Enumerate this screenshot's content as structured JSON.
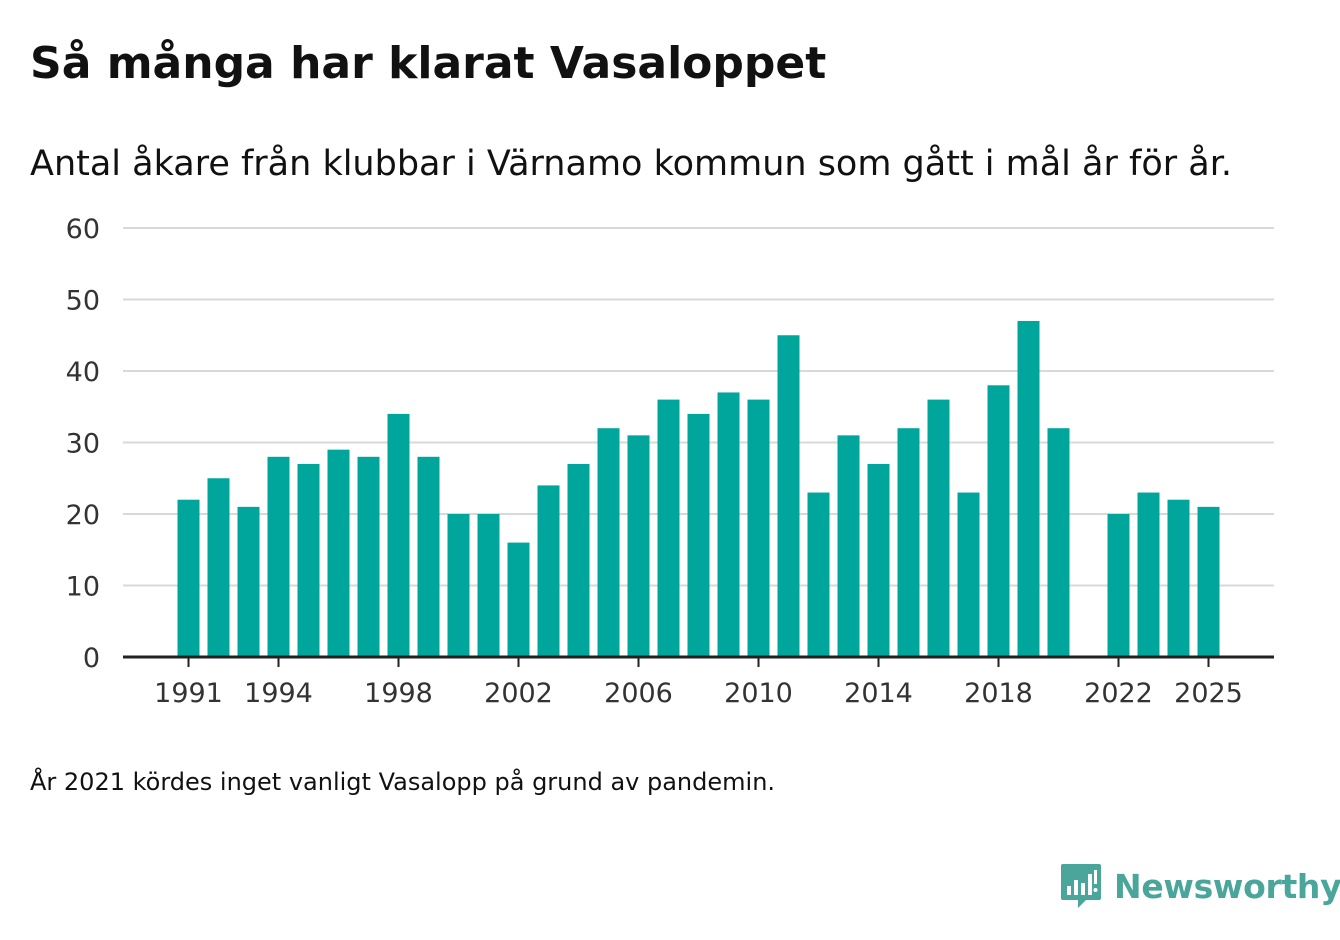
{
  "header": {
    "title": "Så många har klarat Vasaloppet",
    "subtitle": "Antal åkare från klubbar i Värnamo kommun som gått i mål år för år."
  },
  "footer": {
    "note": "År 2021 kördes inget vanligt Vasalopp på grund av pandemin.",
    "brand": "Newsworthy"
  },
  "colors": {
    "bar": "#00a69c",
    "grid": "#d9d9d9",
    "axis": "#222222",
    "brand": "#4aa59a"
  },
  "chart_data": {
    "type": "bar",
    "title": "Så många har klarat Vasaloppet",
    "subtitle": "Antal åkare från klubbar i Värnamo kommun som gått i mål år för år.",
    "xlabel": "",
    "ylabel": "",
    "ylim": [
      0,
      60
    ],
    "yticks": [
      0,
      10,
      20,
      30,
      40,
      50,
      60
    ],
    "xtick_labels": [
      "1991",
      "1994",
      "1998",
      "2002",
      "2006",
      "2010",
      "2014",
      "2018",
      "2022",
      "2025"
    ],
    "grid": true,
    "categories": [
      "1991",
      "1992",
      "1993",
      "1994",
      "1995",
      "1996",
      "1997",
      "1998",
      "1999",
      "2000",
      "2001",
      "2002",
      "2003",
      "2004",
      "2005",
      "2006",
      "2007",
      "2008",
      "2009",
      "2010",
      "2011",
      "2012",
      "2013",
      "2014",
      "2015",
      "2016",
      "2017",
      "2018",
      "2019",
      "2020",
      "2021",
      "2022",
      "2023",
      "2024",
      "2025"
    ],
    "values": [
      22,
      25,
      21,
      28,
      27,
      29,
      28,
      34,
      28,
      20,
      20,
      16,
      24,
      27,
      32,
      31,
      36,
      34,
      37,
      36,
      45,
      23,
      31,
      27,
      32,
      36,
      23,
      38,
      47,
      32,
      null,
      20,
      23,
      22,
      21
    ]
  }
}
